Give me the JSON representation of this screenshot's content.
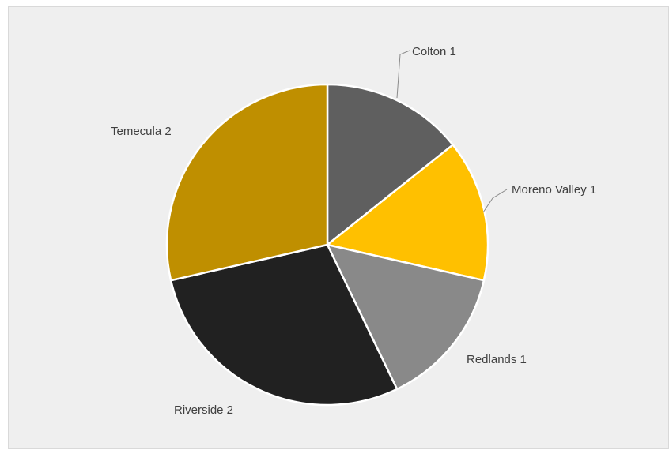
{
  "chart_data": {
    "type": "pie",
    "title": "",
    "categories": [
      "Colton 1",
      "Moreno Valley 1",
      "Redlands 1",
      "Riverside 2",
      "Temecula 2"
    ],
    "values": [
      1,
      1,
      1,
      2,
      2
    ],
    "start_angle_deg": 0,
    "direction": "clockwise",
    "colors": [
      "#5f5f5f",
      "#ffc000",
      "#898989",
      "#212121",
      "#bf8f00"
    ],
    "legend": "none",
    "data_labels": "category name"
  }
}
